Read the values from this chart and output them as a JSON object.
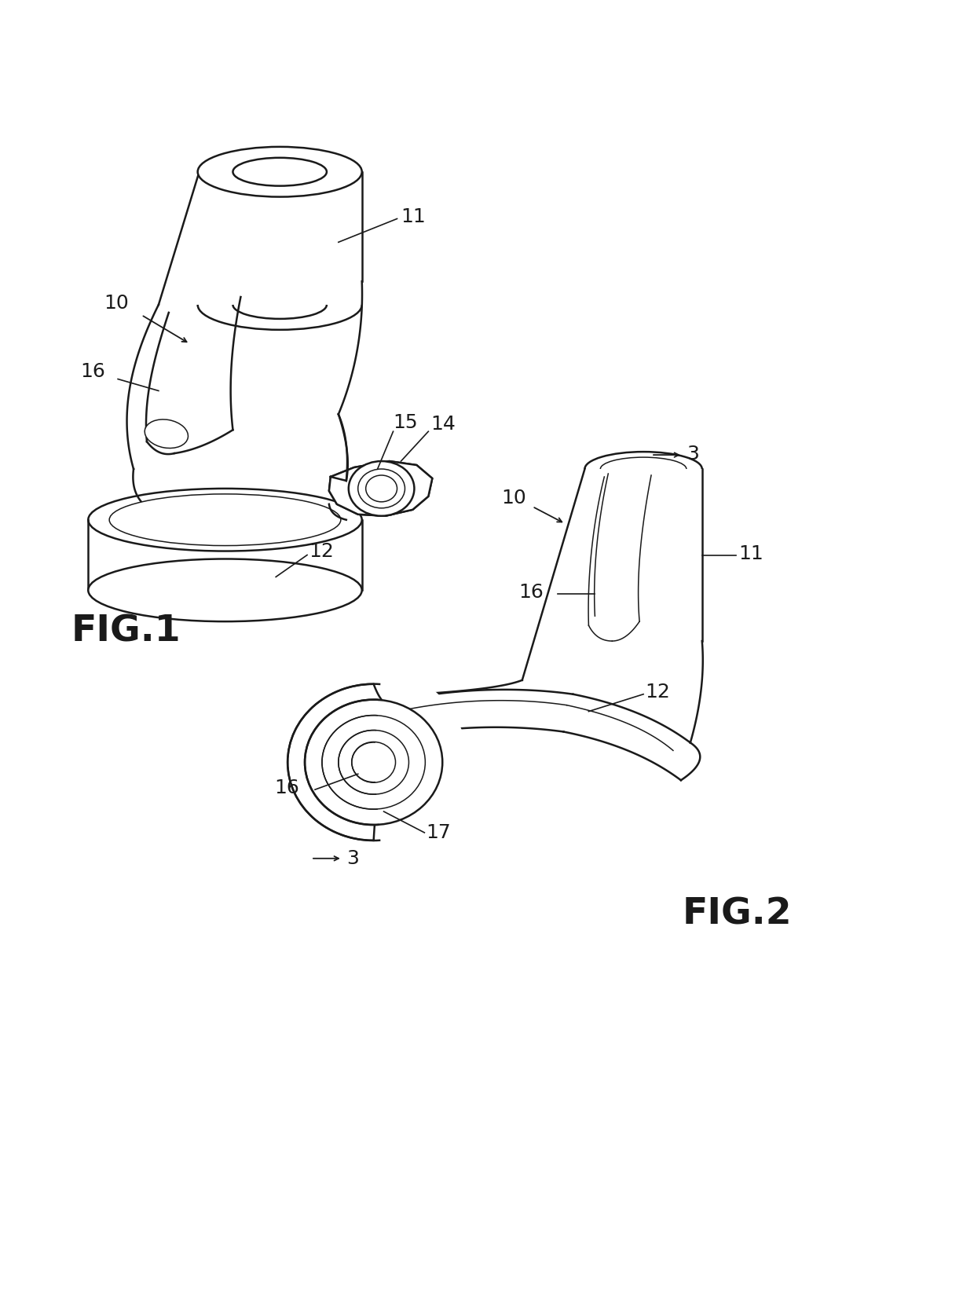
{
  "background_color": "#ffffff",
  "line_color": "#1a1a1a",
  "lw": 1.8,
  "lw_thin": 1.1,
  "fig_width": 12.4,
  "fig_height": 16.46,
  "dpi": 100,
  "fig1_label": "FIG.1",
  "fig2_label": "FIG.2"
}
